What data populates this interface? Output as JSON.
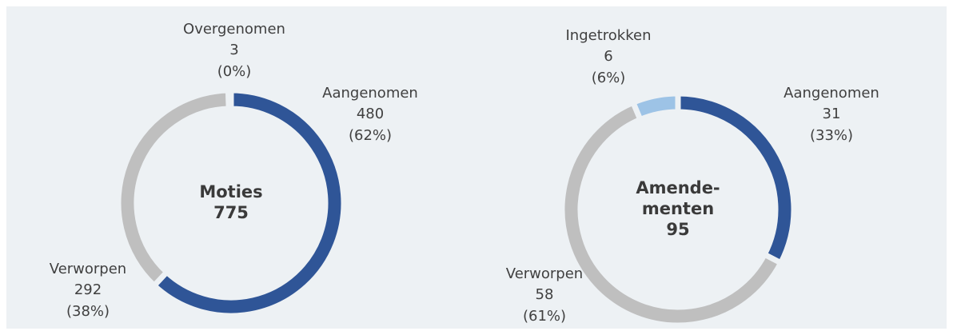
{
  "chart_data": [
    {
      "type": "donut",
      "title_lines": [
        "Moties"
      ],
      "total": 775,
      "categories": [
        "Aangenomen",
        "Verworpen",
        "Overgenomen"
      ],
      "values": [
        480,
        292,
        3
      ],
      "percent_labels": [
        "(62%)",
        "(38%)",
        "(0%)"
      ],
      "colors": [
        "#2f5597",
        "#bfbfbf",
        "#9dc3e6"
      ]
    },
    {
      "type": "donut",
      "title_lines": [
        "Amende-",
        "menten"
      ],
      "total": 95,
      "categories": [
        "Aangenomen",
        "Verworpen",
        "Ingetrokken"
      ],
      "values": [
        31,
        58,
        6
      ],
      "percent_labels": [
        "(33%)",
        "(61%)",
        "(6%)"
      ],
      "colors": [
        "#2f5597",
        "#bfbfbf",
        "#9dc3e6"
      ]
    }
  ]
}
